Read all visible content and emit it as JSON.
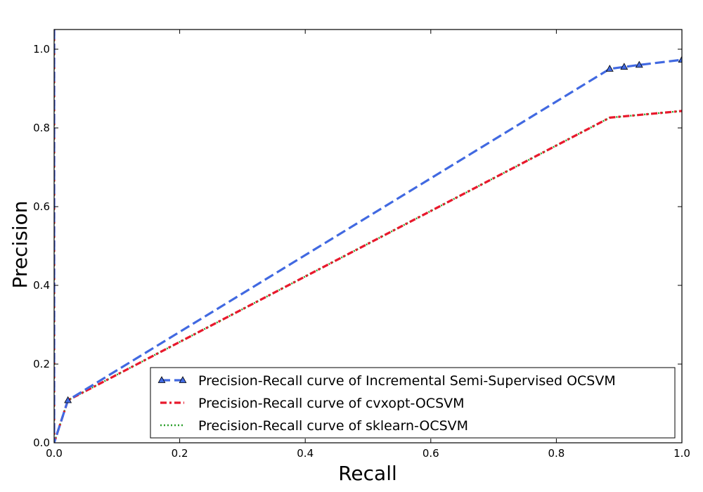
{
  "chart_data": {
    "type": "line",
    "title": "",
    "xlabel": "Recall",
    "ylabel": "Precision",
    "xlim": [
      0.0,
      1.0
    ],
    "ylim": [
      0.0,
      1.05
    ],
    "xticks": [
      "0.0",
      "0.2",
      "0.4",
      "0.6",
      "0.8",
      "1.0"
    ],
    "yticks": [
      "0.0",
      "0.2",
      "0.4",
      "0.6",
      "0.8",
      "1.0"
    ],
    "grid": false,
    "legend_position": "lower-right",
    "series": [
      {
        "name": "Precision-Recall curve of Incremental Semi-Supervised OCSVM",
        "color": "#4169e1",
        "linestyle": "dashed",
        "marker": "triangle",
        "x": [
          0.0,
          0.0,
          0.022,
          0.885,
          0.908,
          0.932,
          1.0
        ],
        "y": [
          1.05,
          0.0,
          0.108,
          0.95,
          0.955,
          0.96,
          0.973
        ]
      },
      {
        "name": "Precision-Recall curve of cvxopt-OCSVM",
        "color": "#e8192c",
        "linestyle": "dashdot",
        "marker": "none",
        "x": [
          0.0,
          0.0,
          0.022,
          0.885,
          1.0
        ],
        "y": [
          1.05,
          0.0,
          0.108,
          0.826,
          0.843
        ]
      },
      {
        "name": "Precision-Recall curve of sklearn-OCSVM",
        "color": "#2ca02c",
        "linestyle": "dotted",
        "marker": "none",
        "x": [
          0.0,
          0.0,
          0.022,
          0.885,
          1.0
        ],
        "y": [
          1.05,
          0.0,
          0.108,
          0.826,
          0.843
        ]
      }
    ]
  }
}
